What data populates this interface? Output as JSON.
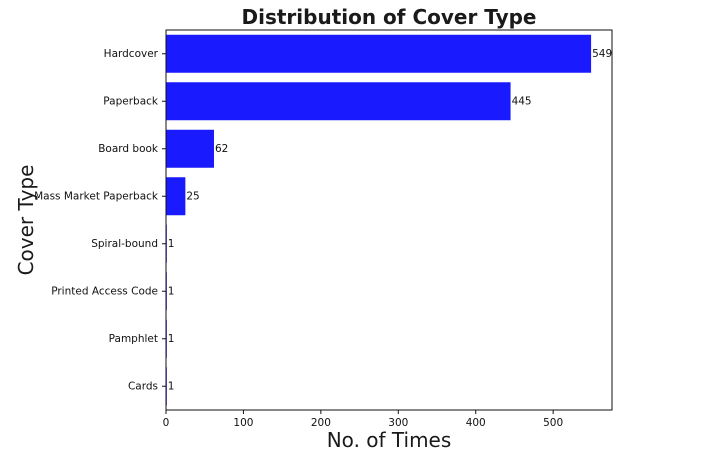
{
  "chart_data": {
    "type": "bar",
    "orientation": "horizontal",
    "title": "Distribution of Cover Type",
    "xlabel": "No. of Times",
    "ylabel": "Cover Type",
    "categories": [
      "Hardcover",
      "Paperback",
      "Board book",
      "Mass Market Paperback",
      "Spiral-bound",
      "Printed Access Code",
      "Pamphlet",
      "Cards"
    ],
    "values": [
      549,
      445,
      62,
      25,
      1,
      1,
      1,
      1
    ],
    "xlim": [
      0,
      576
    ],
    "xticks": [
      0,
      100,
      200,
      300,
      400,
      500
    ],
    "grid": false,
    "bar_color": "#1a1aff"
  }
}
